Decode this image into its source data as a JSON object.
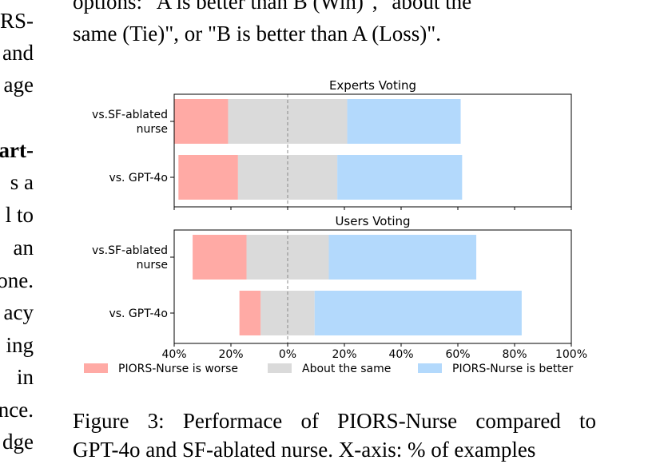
{
  "body_text": {
    "top_lines": [
      "options: \"A is better than B (Win)\", \"about the",
      "same (Tie)\", or \"B is better than A (Loss)\"."
    ],
    "left_fragments": [
      "RS-",
      "and",
      "age",
      "art-",
      "s a",
      "l to",
      "an",
      "one.",
      "acy",
      "ing",
      "in",
      "nce.",
      "dge"
    ]
  },
  "caption": {
    "line1": "Figure 3: Performace of PIORS-Nurse compared to",
    "line2": "GPT-4o and SF-ablated nurse. X-axis: % of examples"
  },
  "chart_data": {
    "type": "bar",
    "subtype": "diverging-stacked-horizontal",
    "xlabel": "",
    "xlim": [
      -40,
      100
    ],
    "x_ticks": [
      -40,
      -20,
      0,
      20,
      40,
      60,
      80,
      100
    ],
    "x_tick_labels": [
      "40%",
      "20%",
      "0%",
      "20%",
      "40%",
      "60%",
      "80%",
      "100%"
    ],
    "grid": false,
    "legend_position": "bottom",
    "legend": [
      {
        "label": "PIORS-Nurse is worse",
        "color": "#ffaaa5"
      },
      {
        "label": "About the same",
        "color": "#dadada"
      },
      {
        "label": "PIORS-Nurse is better",
        "color": "#b3d9fc"
      }
    ],
    "panels": [
      {
        "title": "Experts Voting",
        "categories": [
          "vs.SF-ablated\nnurse",
          "vs. GPT-4o"
        ],
        "series": [
          {
            "name": "PIORS-Nurse is worse",
            "values": [
              19,
              21
            ]
          },
          {
            "name": "About the same",
            "values": [
              42,
              35
            ]
          },
          {
            "name": "PIORS-Nurse is better",
            "values": [
              40,
              44
            ]
          }
        ]
      },
      {
        "title": "Users Voting",
        "categories": [
          "vs.SF-ablated\nnurse",
          "vs. GPT-4o"
        ],
        "series": [
          {
            "name": "PIORS-Nurse is worse",
            "values": [
              19,
              7.5
            ]
          },
          {
            "name": "About the same",
            "values": [
              29,
              19
            ]
          },
          {
            "name": "PIORS-Nurse is better",
            "values": [
              52,
              73
            ]
          }
        ]
      }
    ]
  }
}
